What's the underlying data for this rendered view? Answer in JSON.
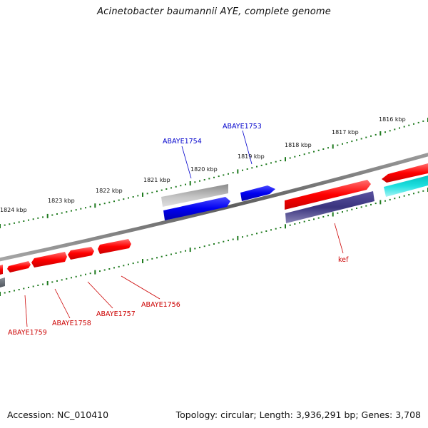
{
  "title": "Acinetobacter baumannii AYE, complete genome",
  "footer": {
    "accession": "Accession: NC_010410",
    "summary": "Topology: circular; Length: 3,936,291 bp; Genes: 3,708"
  },
  "scale": {
    "tick_labels": [
      "1824 kbp",
      "1823 kbp",
      "1822 kbp",
      "1821 kbp",
      "1820 kbp",
      "1819 kbp",
      "1818 kbp",
      "1817 kbp",
      "1816 kbp"
    ],
    "tick_color": "#1e7a1e"
  },
  "backbone_color": "#7a7a7a",
  "gene_labels": [
    {
      "text": "ABAYE1754",
      "color": "#0000cc"
    },
    {
      "text": "ABAYE1753",
      "color": "#0000cc"
    },
    {
      "text": "kef",
      "color": "#cc0000"
    },
    {
      "text": "ABAYE1756",
      "color": "#cc0000"
    },
    {
      "text": "ABAYE1757",
      "color": "#cc0000"
    },
    {
      "text": "ABAYE1758",
      "color": "#cc0000"
    },
    {
      "text": "ABAYE1759",
      "color": "#cc0000"
    }
  ],
  "feature_colors": {
    "forward_cds": "#ff0000",
    "reverse_cds": "#0000ff",
    "rna": "#2e2a7a",
    "pseudo": "#b0b0b0",
    "other": "#00c8c8"
  }
}
